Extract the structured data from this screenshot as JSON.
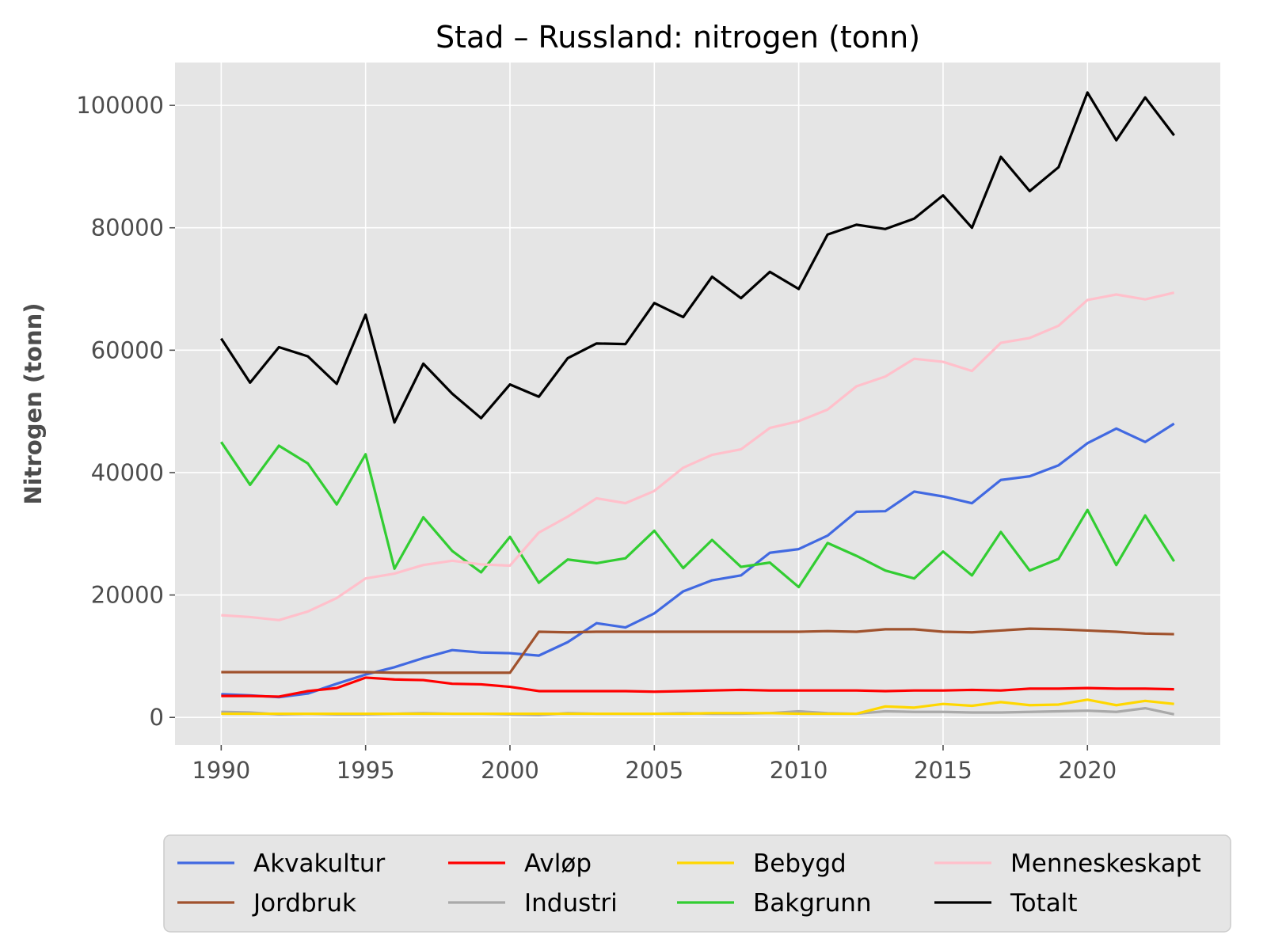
{
  "chart_data": {
    "type": "line",
    "title": "Stad – Russland: nitrogen (tonn)",
    "xlabel": "",
    "ylabel": "Nitrogen (tonn)",
    "xlim": [
      1988.4,
      2024.6
    ],
    "ylim": [
      -4500,
      107000
    ],
    "xticks": [
      1990,
      1995,
      2000,
      2005,
      2010,
      2015,
      2020
    ],
    "yticks": [
      0,
      20000,
      40000,
      60000,
      80000,
      100000
    ],
    "grid": true,
    "legend_position": "bottom",
    "legend_columns": 4,
    "x": [
      1990,
      1991,
      1992,
      1993,
      1994,
      1995,
      1996,
      1997,
      1998,
      1999,
      2000,
      2001,
      2002,
      2003,
      2004,
      2005,
      2006,
      2007,
      2008,
      2009,
      2010,
      2011,
      2012,
      2013,
      2014,
      2015,
      2016,
      2017,
      2018,
      2019,
      2020,
      2021,
      2022,
      2023
    ],
    "series": [
      {
        "name": "Akvakultur",
        "color": "#4169e1",
        "values": [
          3800,
          3600,
          3300,
          3900,
          5500,
          7000,
          8200,
          9700,
          11000,
          10600,
          10500,
          10100,
          12300,
          15400,
          14700,
          17000,
          20600,
          22400,
          23200,
          26900,
          27500,
          29700,
          33600,
          33700,
          36900,
          36100,
          35000,
          38800,
          39400,
          41200,
          44800,
          47200,
          45000,
          48000
        ]
      },
      {
        "name": "Avløp",
        "color": "#ff0000",
        "values": [
          3500,
          3500,
          3400,
          4300,
          4800,
          6500,
          6200,
          6100,
          5500,
          5400,
          5000,
          4300,
          4300,
          4300,
          4300,
          4200,
          4300,
          4400,
          4500,
          4400,
          4400,
          4400,
          4400,
          4300,
          4400,
          4400,
          4500,
          4400,
          4700,
          4700,
          4800,
          4700,
          4700,
          4600
        ]
      },
      {
        "name": "Bebygd",
        "color": "#ffd700",
        "values": [
          600,
          600,
          600,
          600,
          600,
          600,
          600,
          600,
          600,
          600,
          600,
          600,
          600,
          600,
          600,
          600,
          600,
          700,
          700,
          700,
          600,
          600,
          600,
          1800,
          1600,
          2200,
          1900,
          2500,
          2000,
          2100,
          2900,
          2000,
          2700,
          2200
        ]
      },
      {
        "name": "Menneskeskapt",
        "color": "#ffc0cb",
        "values": [
          16700,
          16400,
          15900,
          17300,
          19500,
          22700,
          23500,
          24900,
          25600,
          25000,
          24800,
          30200,
          32800,
          35800,
          35000,
          37000,
          40800,
          42900,
          43800,
          47300,
          48400,
          50300,
          54100,
          55700,
          58600,
          58100,
          56600,
          61200,
          62000,
          64000,
          68200,
          69100,
          68300,
          69400
        ]
      },
      {
        "name": "Jordbruk",
        "color": "#a0522d",
        "values": [
          7400,
          7400,
          7400,
          7400,
          7400,
          7400,
          7300,
          7300,
          7300,
          7300,
          7300,
          14000,
          13900,
          14000,
          14000,
          14000,
          14000,
          14000,
          14000,
          14000,
          14000,
          14100,
          14000,
          14400,
          14400,
          14000,
          13900,
          14200,
          14500,
          14400,
          14200,
          14000,
          13700,
          13600
        ]
      },
      {
        "name": "Industri",
        "color": "#a9a9a9",
        "values": [
          900,
          800,
          500,
          600,
          500,
          500,
          600,
          700,
          600,
          600,
          500,
          400,
          700,
          600,
          600,
          600,
          700,
          600,
          600,
          700,
          1000,
          700,
          600,
          1000,
          900,
          900,
          800,
          800,
          900,
          1000,
          1100,
          900,
          1500,
          500
        ]
      },
      {
        "name": "Bakgrunn",
        "color": "#32cd32",
        "values": [
          45000,
          38000,
          44400,
          41500,
          34800,
          43000,
          24300,
          32700,
          27200,
          23700,
          29500,
          22000,
          25800,
          25200,
          26000,
          30500,
          24400,
          29000,
          24600,
          25300,
          21300,
          28500,
          26400,
          24000,
          22700,
          27100,
          23200,
          30300,
          24000,
          25900,
          33900,
          24900,
          33000,
          25500
        ]
      },
      {
        "name": "Totalt",
        "color": "#000000",
        "values": [
          61900,
          54700,
          60500,
          59000,
          54500,
          65800,
          48200,
          57800,
          52900,
          48900,
          54400,
          52400,
          58700,
          61100,
          61000,
          67700,
          65400,
          72000,
          68500,
          72800,
          70000,
          78900,
          80500,
          79800,
          81500,
          85300,
          80000,
          91600,
          86000,
          89900,
          102100,
          94300,
          101300,
          95100
        ]
      }
    ],
    "legend_order": [
      "Akvakultur",
      "Avløp",
      "Bebygd",
      "Menneskeskapt",
      "Jordbruk",
      "Industri",
      "Bakgrunn",
      "Totalt"
    ]
  }
}
